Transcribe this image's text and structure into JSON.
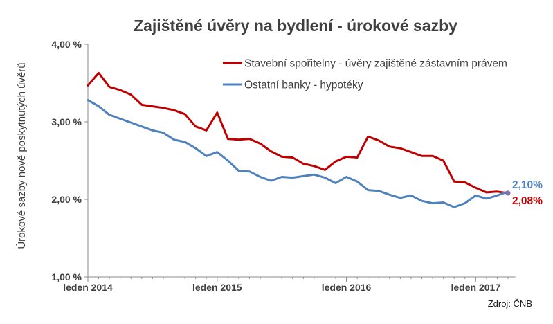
{
  "chart_data": {
    "type": "line",
    "title": "Zajištěné úvěry na bydlení - úrokové sazby",
    "ylabel": "Úrokové sazby nově poskytnutých úvěrů",
    "xlabel": "",
    "ylim": [
      1.0,
      4.0
    ],
    "yticks": [
      {
        "value": 1.0,
        "label": "1,00 %"
      },
      {
        "value": 2.0,
        "label": "2,00 %"
      },
      {
        "value": 3.0,
        "label": "3,00 %"
      },
      {
        "value": 4.0,
        "label": "4,00 %"
      }
    ],
    "xticks": [
      {
        "index": 0,
        "label": "leden 2014"
      },
      {
        "index": 12,
        "label": "leden 2015"
      },
      {
        "index": 24,
        "label": "leden 2016"
      },
      {
        "index": 36,
        "label": "leden 2017"
      }
    ],
    "x_count": 40,
    "grid": false,
    "legend_position": "top-right",
    "series": [
      {
        "name": "Stavební spořitelny - úvěry zajištěné zástavním právem",
        "color": "#c00000",
        "values": [
          3.47,
          3.63,
          3.45,
          3.41,
          3.35,
          3.22,
          3.2,
          3.18,
          3.15,
          3.1,
          2.94,
          2.89,
          3.12,
          2.78,
          2.77,
          2.78,
          2.72,
          2.62,
          2.55,
          2.54,
          2.46,
          2.43,
          2.38,
          2.49,
          2.55,
          2.54,
          2.81,
          2.76,
          2.68,
          2.66,
          2.61,
          2.56,
          2.56,
          2.5,
          2.23,
          2.22,
          2.15,
          2.09,
          2.1,
          2.08
        ],
        "end_label": "2,08%"
      },
      {
        "name": "Ostatní banky - hypotéky",
        "color": "#4f81bd",
        "values": [
          3.28,
          3.2,
          3.09,
          3.04,
          2.99,
          2.94,
          2.89,
          2.86,
          2.77,
          2.74,
          2.66,
          2.56,
          2.61,
          2.5,
          2.37,
          2.36,
          2.29,
          2.24,
          2.29,
          2.28,
          2.3,
          2.32,
          2.28,
          2.21,
          2.29,
          2.23,
          2.12,
          2.11,
          2.06,
          2.02,
          2.05,
          1.98,
          1.95,
          1.96,
          1.9,
          1.95,
          2.05,
          2.01,
          2.05,
          2.1
        ],
        "end_label": "2,10%"
      }
    ],
    "source": "Zdroj: ČNB"
  }
}
